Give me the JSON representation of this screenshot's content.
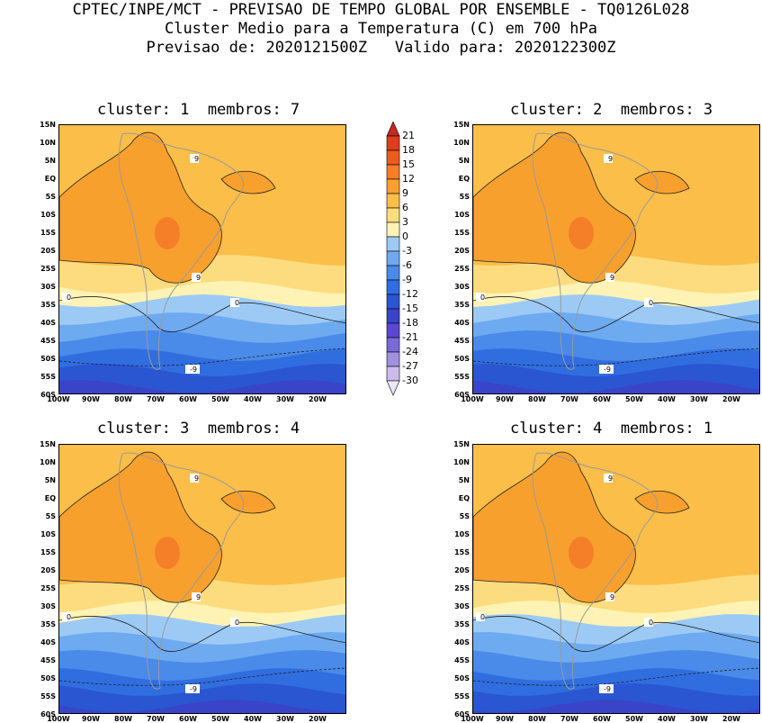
{
  "header": {
    "line1": "CPTEC/INPE/MCT - PREVISAO DE TEMPO GLOBAL POR ENSEMBLE - TQ0126L028",
    "line2": "Cluster Medio para a Temperatura (C) em 700 hPa",
    "line3": "Previsao de: 2020121500Z   Valido para: 2020122300Z"
  },
  "panels": [
    {
      "title": "cluster: 1  membros: 7"
    },
    {
      "title": "cluster: 2  membros: 3"
    },
    {
      "title": "cluster: 3  membros: 4"
    },
    {
      "title": "cluster: 4  membros: 1"
    }
  ],
  "lat_labels": [
    "15N",
    "10N",
    "5N",
    "EQ",
    "5S",
    "10S",
    "15S",
    "20S",
    "25S",
    "30S",
    "35S",
    "40S",
    "45S",
    "50S",
    "55S",
    "60S"
  ],
  "lon_labels": [
    "100W",
    "90W",
    "80W",
    "70W",
    "60W",
    "50W",
    "40W",
    "30W",
    "20W"
  ],
  "colorbar": {
    "levels": [
      "21",
      "18",
      "15",
      "12",
      "9",
      "6",
      "3",
      "0",
      "-3",
      "-6",
      "-9",
      "-12",
      "-15",
      "-18",
      "-21",
      "-24",
      "-27",
      "-30"
    ],
    "colors": [
      "#c8281e",
      "#e03c1e",
      "#ee5a1e",
      "#f57e28",
      "#f8a02e",
      "#fbbe48",
      "#fcdc7e",
      "#fef3b4",
      "#9ccaf5",
      "#6eaaf0",
      "#4a8ae8",
      "#306ee0",
      "#2a56d2",
      "#3a44c8",
      "#5a48d0",
      "#7a6ad8",
      "#a090e2",
      "#cbbcee",
      "#ece6f8"
    ]
  },
  "map_data": {
    "contour_labels": [
      "9",
      "0",
      "-9"
    ]
  }
}
